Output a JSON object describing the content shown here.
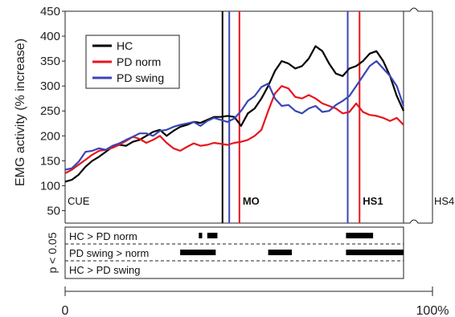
{
  "chart_data": {
    "type": "line",
    "ylabel": "EMG activity (% increase)",
    "ylim": [
      25,
      450
    ],
    "yticks": [
      50,
      100,
      150,
      200,
      250,
      300,
      350,
      400,
      450
    ],
    "xlim": [
      0,
      100
    ],
    "xtick_labels": [
      "0",
      "100%"
    ],
    "legend": {
      "position": "top-left",
      "entries": [
        "HC",
        "PD norm",
        "PD swing"
      ]
    },
    "series": [
      {
        "name": "HC",
        "color": "#000000",
        "x": [
          0,
          2,
          4,
          6,
          8,
          10,
          12,
          14,
          16,
          18,
          20,
          22,
          24,
          26,
          28,
          30,
          32,
          34,
          36,
          38,
          40,
          42,
          44,
          46,
          48,
          50,
          52,
          54,
          56,
          58,
          60,
          62,
          64,
          66,
          68,
          70,
          72,
          74,
          76,
          78,
          80,
          82,
          84,
          86,
          88,
          90,
          92,
          94,
          96,
          98,
          100
        ],
        "y": [
          108,
          112,
          122,
          138,
          150,
          158,
          168,
          178,
          182,
          180,
          188,
          192,
          200,
          208,
          212,
          200,
          210,
          218,
          222,
          228,
          226,
          232,
          238,
          238,
          240,
          238,
          220,
          245,
          255,
          275,
          300,
          330,
          350,
          345,
          335,
          340,
          355,
          380,
          370,
          345,
          325,
          320,
          335,
          340,
          350,
          365,
          370,
          350,
          320,
          280,
          250
        ]
      },
      {
        "name": "PD norm",
        "color": "#e8141c",
        "x": [
          0,
          2,
          4,
          6,
          8,
          10,
          12,
          14,
          16,
          18,
          20,
          22,
          24,
          26,
          28,
          30,
          32,
          34,
          36,
          38,
          40,
          42,
          44,
          46,
          48,
          50,
          52,
          54,
          56,
          58,
          60,
          62,
          64,
          66,
          68,
          70,
          72,
          74,
          76,
          78,
          80,
          82,
          84,
          86,
          88,
          90,
          92,
          94,
          96,
          98,
          100
        ],
        "y": [
          125,
          132,
          142,
          152,
          162,
          170,
          172,
          176,
          182,
          190,
          198,
          194,
          186,
          192,
          200,
          186,
          175,
          170,
          178,
          185,
          180,
          182,
          186,
          184,
          182,
          186,
          188,
          192,
          200,
          212,
          250,
          285,
          300,
          295,
          278,
          275,
          282,
          275,
          265,
          260,
          255,
          245,
          248,
          265,
          248,
          242,
          240,
          236,
          230,
          236,
          222
        ]
      },
      {
        "name": "PD swing",
        "color": "#3a45b4",
        "x": [
          0,
          2,
          4,
          6,
          8,
          10,
          12,
          14,
          16,
          18,
          20,
          22,
          24,
          26,
          28,
          30,
          32,
          34,
          36,
          38,
          40,
          42,
          44,
          46,
          48,
          50,
          52,
          54,
          56,
          58,
          60,
          62,
          64,
          66,
          68,
          70,
          72,
          74,
          76,
          78,
          80,
          82,
          84,
          86,
          88,
          90,
          92,
          94,
          96,
          98,
          100
        ],
        "y": [
          132,
          135,
          148,
          168,
          170,
          175,
          172,
          180,
          185,
          192,
          198,
          205,
          205,
          200,
          210,
          212,
          218,
          222,
          225,
          228,
          220,
          230,
          236,
          232,
          228,
          235,
          250,
          270,
          280,
          298,
          305,
          275,
          260,
          262,
          250,
          245,
          255,
          260,
          248,
          250,
          262,
          270,
          280,
          300,
          320,
          340,
          350,
          335,
          320,
          300,
          260
        ]
      }
    ],
    "events": [
      {
        "label": "CUE",
        "x": 0
      },
      {
        "label": "",
        "x": 46.5,
        "color": "#000000"
      },
      {
        "label": "",
        "x": 48.5,
        "color": "#3a45b4"
      },
      {
        "label": "MO",
        "x": 51.5,
        "color": "#e8141c"
      },
      {
        "label": "",
        "x": 83.5,
        "color": "#3a45b4"
      },
      {
        "label": "HS1",
        "x": 87,
        "color": "#e8141c"
      },
      {
        "label": "HS4",
        "x": 100
      }
    ],
    "significance": {
      "ylabel": "p < 0.05",
      "rows": [
        {
          "label": "HC > PD norm",
          "intervals": [
            [
              39.5,
              40.5
            ],
            [
              42,
              45
            ],
            [
              83,
              91
            ]
          ]
        },
        {
          "label": "PD swing > norm",
          "intervals": [
            [
              34,
              44.5
            ],
            [
              60,
              67
            ],
            [
              83,
              100
            ]
          ]
        },
        {
          "label": "HC > PD swing",
          "intervals": []
        }
      ]
    }
  }
}
